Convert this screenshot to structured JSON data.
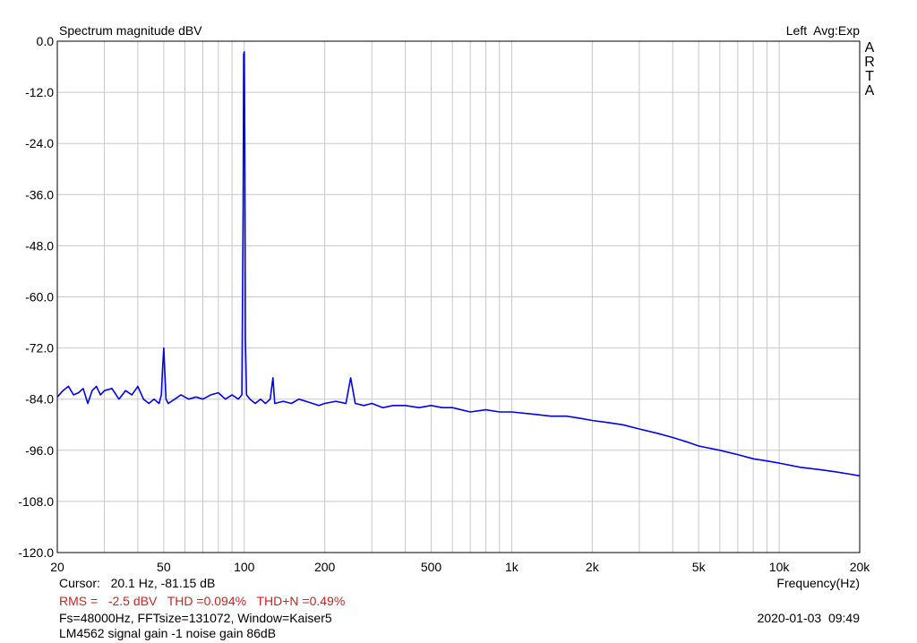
{
  "header": {
    "title": "Spectrum magnitude dBV",
    "mode": "Left  Avg:Exp",
    "brand_letters": [
      "A",
      "R",
      "T",
      "A"
    ]
  },
  "footer": {
    "cursor": "Cursor:   20.1 Hz, -81.15 dB",
    "stats": "RMS =   -2.5 dBV   THD =0.094%   THD+N =0.49%",
    "fs": "Fs=48000Hz, FFTsize=131072, Window=Kaiser5",
    "date": "2020-01-03  09:49",
    "note": "LM4562 signal gain -1 noise gain 86dB"
  },
  "colors": {
    "trace": "#0000ee",
    "grid": "#c8c8c8",
    "axis": "#000000",
    "stats_text": "#cc2222"
  },
  "chart_data": {
    "type": "line",
    "title": "Spectrum magnitude dBV",
    "xlabel": "Frequency(Hz)",
    "ylabel": "",
    "x_scale": "log",
    "xlim": [
      20,
      20000
    ],
    "ylim": [
      -120,
      0
    ],
    "grid": true,
    "x_ticks": [
      20,
      50,
      100,
      200,
      500,
      1000,
      2000,
      5000,
      10000,
      20000
    ],
    "x_tick_labels": [
      "20",
      "50",
      "100",
      "200",
      "500",
      "1k",
      "2k",
      "5k",
      "10k",
      "20k"
    ],
    "y_ticks": [
      0,
      -12,
      -24,
      -36,
      -48,
      -60,
      -72,
      -84,
      -96,
      -108,
      -120
    ],
    "y_tick_labels": [
      "0.0",
      "-12.0",
      "-24.0",
      "-36.0",
      "-48.0",
      "-60.0",
      "-72.0",
      "-84.0",
      "-96.0",
      "-108.0",
      "-120.0"
    ],
    "series": [
      {
        "x": [
          20,
          21,
          22,
          23,
          24,
          25,
          26,
          27,
          28,
          29,
          30,
          32,
          34,
          36,
          38,
          40,
          42,
          44,
          46,
          48,
          49,
          49.5,
          50,
          50.5,
          51,
          52,
          55,
          58,
          62,
          66,
          70,
          75,
          80,
          85,
          90,
          95,
          98,
          99,
          99.5,
          100,
          100.5,
          101,
          102,
          105,
          110,
          115,
          120,
          125,
          128,
          130,
          140,
          150,
          160,
          170,
          180,
          190,
          200,
          220,
          240,
          250,
          260,
          280,
          300,
          330,
          360,
          400,
          450,
          500,
          550,
          600,
          700,
          800,
          900,
          1000,
          1200,
          1400,
          1600,
          1800,
          2000,
          2300,
          2600,
          3000,
          3500,
          4000,
          4500,
          5000,
          6000,
          7000,
          8000,
          9000,
          10000,
          12000,
          14000,
          16000,
          18000,
          20000
        ],
        "y": [
          -83.5,
          -82,
          -81,
          -83,
          -82.5,
          -81.5,
          -85,
          -82,
          -81,
          -83,
          -82,
          -81.5,
          -84,
          -82,
          -83,
          -81,
          -84,
          -85,
          -84,
          -85,
          -83,
          -77,
          -72,
          -78,
          -84,
          -85,
          -84,
          -83,
          -84,
          -83.5,
          -84,
          -83,
          -82.5,
          -84,
          -83,
          -84,
          -83,
          -40,
          -3,
          -2.5,
          -25,
          -70,
          -83,
          -84,
          -85,
          -84,
          -85,
          -84,
          -79,
          -85,
          -84.5,
          -85,
          -84,
          -84.5,
          -85,
          -85.5,
          -85,
          -84.5,
          -85,
          -79,
          -85,
          -85.5,
          -85,
          -86,
          -85.5,
          -85.5,
          -86,
          -85.5,
          -86,
          -86,
          -87,
          -86.5,
          -87,
          -87,
          -87.5,
          -88,
          -88,
          -88.5,
          -89,
          -89.5,
          -90,
          -91,
          -92,
          -93,
          -94,
          -95,
          -96,
          -97,
          -98,
          -98.5,
          -99,
          -100,
          -100.5,
          -101,
          -101.5,
          -102
        ]
      }
    ]
  }
}
